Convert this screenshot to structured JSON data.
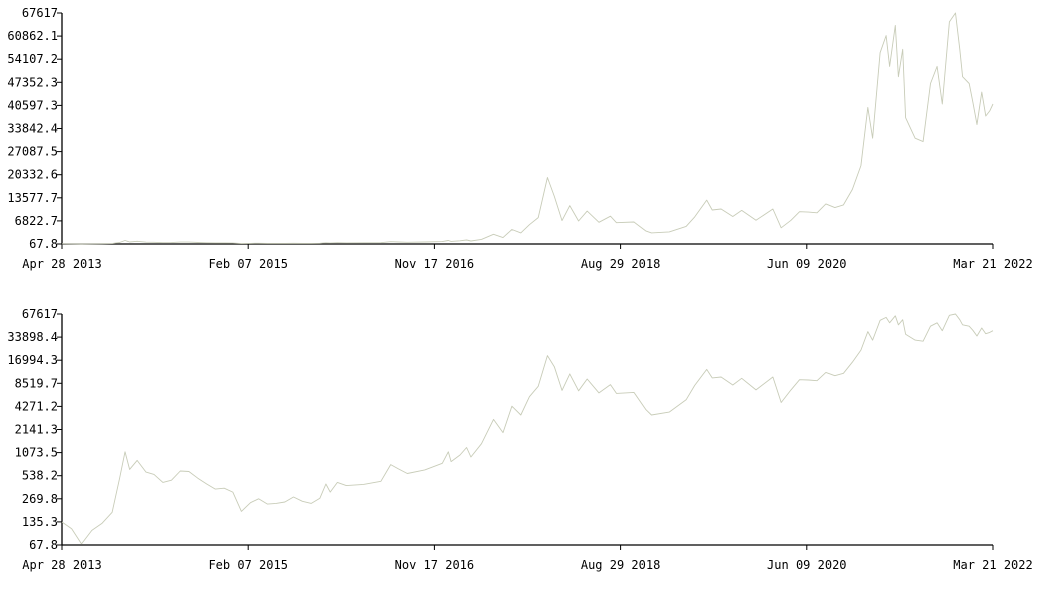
{
  "colors": {
    "line": "#c8ccb8",
    "axis": "#000000",
    "background": "#ffffff"
  },
  "chart_data": [
    {
      "type": "line",
      "scale": "linear",
      "x_ticks": [
        "Apr 28 2013",
        "Feb 07 2015",
        "Nov 17 2016",
        "Aug 29 2018",
        "Jun 09 2020",
        "Mar 21 2022"
      ],
      "y_ticks": [
        "67617",
        "60862.1",
        "54107.2",
        "47352.3",
        "40597.3",
        "33842.4",
        "27087.5",
        "20332.6",
        "13577.7",
        "6822.7",
        "67.8"
      ],
      "ylim": [
        67.8,
        67617
      ],
      "xlim": [
        "2013-04-28",
        "2022-03-21"
      ],
      "grid": false
    },
    {
      "type": "line",
      "scale": "log",
      "x_ticks": [
        "Apr 28 2013",
        "Feb 07 2015",
        "Nov 17 2016",
        "Aug 29 2018",
        "Jun 09 2020",
        "Mar 21 2022"
      ],
      "y_ticks": [
        "67617",
        "33898.4",
        "16994.3",
        "8519.7",
        "4271.2",
        "2141.3",
        "1073.5",
        "538.2",
        "269.8",
        "135.3",
        "67.8"
      ],
      "ylim": [
        67.8,
        67617
      ],
      "xlim": [
        "2013-04-28",
        "2022-03-21"
      ],
      "grid": false
    }
  ],
  "series": {
    "name": "",
    "points": [
      [
        "2013-04-28",
        135
      ],
      [
        "2013-06-01",
        110
      ],
      [
        "2013-07-05",
        70
      ],
      [
        "2013-08-10",
        105
      ],
      [
        "2013-09-15",
        130
      ],
      [
        "2013-10-20",
        180
      ],
      [
        "2013-11-15",
        500
      ],
      [
        "2013-12-04",
        1100
      ],
      [
        "2013-12-20",
        650
      ],
      [
        "2014-01-15",
        850
      ],
      [
        "2014-02-15",
        600
      ],
      [
        "2014-03-15",
        560
      ],
      [
        "2014-04-15",
        440
      ],
      [
        "2014-05-15",
        470
      ],
      [
        "2014-06-15",
        620
      ],
      [
        "2014-07-15",
        610
      ],
      [
        "2014-08-15",
        500
      ],
      [
        "2014-09-15",
        420
      ],
      [
        "2014-10-15",
        360
      ],
      [
        "2014-11-15",
        370
      ],
      [
        "2014-12-15",
        330
      ],
      [
        "2015-01-14",
        185
      ],
      [
        "2015-02-15",
        240
      ],
      [
        "2015-03-15",
        270
      ],
      [
        "2015-04-15",
        230
      ],
      [
        "2015-05-15",
        235
      ],
      [
        "2015-06-15",
        245
      ],
      [
        "2015-07-15",
        285
      ],
      [
        "2015-08-15",
        250
      ],
      [
        "2015-09-15",
        235
      ],
      [
        "2015-10-15",
        275
      ],
      [
        "2015-11-05",
        420
      ],
      [
        "2015-11-20",
        330
      ],
      [
        "2015-12-15",
        440
      ],
      [
        "2016-01-15",
        400
      ],
      [
        "2016-03-15",
        415
      ],
      [
        "2016-05-15",
        455
      ],
      [
        "2016-06-18",
        750
      ],
      [
        "2016-07-15",
        660
      ],
      [
        "2016-08-15",
        575
      ],
      [
        "2016-10-15",
        640
      ],
      [
        "2016-12-15",
        780
      ],
      [
        "2017-01-05",
        1100
      ],
      [
        "2017-01-15",
        820
      ],
      [
        "2017-02-15",
        1000
      ],
      [
        "2017-03-10",
        1250
      ],
      [
        "2017-03-25",
        940
      ],
      [
        "2017-05-01",
        1400
      ],
      [
        "2017-06-12",
        2900
      ],
      [
        "2017-07-15",
        1950
      ],
      [
        "2017-08-15",
        4300
      ],
      [
        "2017-09-15",
        3300
      ],
      [
        "2017-10-15",
        5700
      ],
      [
        "2017-11-15",
        7800
      ],
      [
        "2017-12-17",
        19500
      ],
      [
        "2018-01-10",
        14000
      ],
      [
        "2018-02-06",
        6900
      ],
      [
        "2018-03-05",
        11300
      ],
      [
        "2018-04-05",
        6800
      ],
      [
        "2018-05-05",
        9700
      ],
      [
        "2018-06-15",
        6400
      ],
      [
        "2018-07-25",
        8200
      ],
      [
        "2018-08-15",
        6300
      ],
      [
        "2018-10-15",
        6500
      ],
      [
        "2018-11-25",
        3900
      ],
      [
        "2018-12-15",
        3300
      ],
      [
        "2019-02-15",
        3600
      ],
      [
        "2019-04-15",
        5200
      ],
      [
        "2019-05-15",
        8000
      ],
      [
        "2019-06-26",
        12900
      ],
      [
        "2019-07-15",
        10000
      ],
      [
        "2019-08-15",
        10300
      ],
      [
        "2019-09-25",
        8100
      ],
      [
        "2019-10-26",
        9900
      ],
      [
        "2019-12-15",
        7000
      ],
      [
        "2020-02-12",
        10300
      ],
      [
        "2020-03-12",
        4800
      ],
      [
        "2020-04-15",
        7000
      ],
      [
        "2020-05-15",
        9500
      ],
      [
        "2020-06-15",
        9400
      ],
      [
        "2020-07-15",
        9200
      ],
      [
        "2020-08-15",
        11800
      ],
      [
        "2020-09-15",
        10700
      ],
      [
        "2020-10-15",
        11500
      ],
      [
        "2020-11-15",
        16000
      ],
      [
        "2020-12-15",
        23000
      ],
      [
        "2021-01-08",
        40000
      ],
      [
        "2021-01-25",
        31000
      ],
      [
        "2021-02-20",
        56000
      ],
      [
        "2021-03-13",
        61000
      ],
      [
        "2021-03-25",
        52000
      ],
      [
        "2021-04-14",
        64000
      ],
      [
        "2021-04-25",
        49000
      ],
      [
        "2021-05-10",
        57000
      ],
      [
        "2021-05-20",
        37000
      ],
      [
        "2021-06-22",
        31000
      ],
      [
        "2021-07-20",
        30000
      ],
      [
        "2021-08-15",
        47000
      ],
      [
        "2021-09-07",
        52000
      ],
      [
        "2021-09-25",
        41000
      ],
      [
        "2021-10-20",
        65000
      ],
      [
        "2021-11-10",
        67617
      ],
      [
        "2021-11-25",
        57000
      ],
      [
        "2021-12-05",
        49000
      ],
      [
        "2021-12-28",
        47000
      ],
      [
        "2022-01-10",
        41500
      ],
      [
        "2022-01-24",
        35000
      ],
      [
        "2022-02-10",
        44500
      ],
      [
        "2022-02-24",
        37500
      ],
      [
        "2022-03-10",
        39000
      ],
      [
        "2022-03-21",
        41000
      ]
    ]
  }
}
